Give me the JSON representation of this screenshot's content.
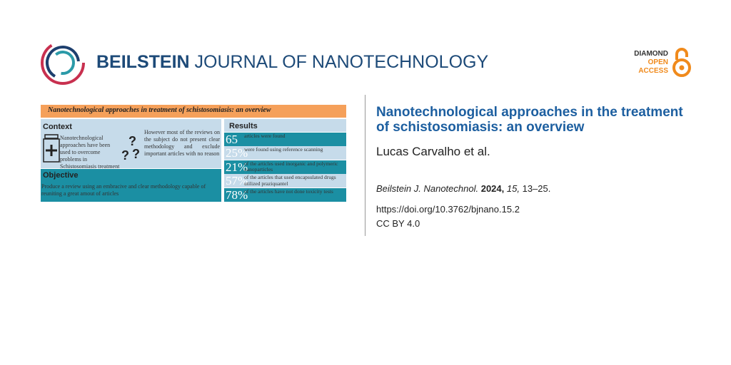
{
  "header": {
    "brand": "BEILSTEIN",
    "journal": "JOURNAL OF NANOTECHNOLOGY",
    "badge": [
      "DIAMOND",
      "OPEN",
      "ACCESS"
    ]
  },
  "graphical_abstract": {
    "title": "Nanotechnological approaches in treatment of schistosomiasis: an overview",
    "context": {
      "heading": "Context",
      "left": "Nanotechnological approaches have been used to overcome problems in Schistosomiasis treatment",
      "right": "However most of the reviews on the subject do not present clear methodology and exclude important articles with no reason"
    },
    "objective": {
      "heading": "Objective",
      "text": "Produce a review using an embracive and clear methodology capable of reuniting a great amout of articles"
    },
    "results": {
      "heading": "Results",
      "rows": [
        {
          "figure": "65",
          "text": "articles were found"
        },
        {
          "figure": "25%",
          "text": "were found using reference scanning"
        },
        {
          "figure": "21%",
          "text": "of the articles used inorganic and polymeric nanoparticles"
        },
        {
          "figure": "57%",
          "text": "of the articles that used encapsulated drugs utilized praziquantel"
        },
        {
          "figure": "78%",
          "text": "of the articles have not done toxicity tests"
        }
      ]
    }
  },
  "article": {
    "title": "Nanotechnological approaches in the treatment of schistosomiasis: an overview",
    "authors": "Lucas Carvalho et al.",
    "citation": {
      "journal": "Beilstein J. Nanotechnol.",
      "year": "2024,",
      "volume": "15,",
      "pages": "13–25."
    },
    "doi": "https://doi.org/10.3762/bjnano.15.2",
    "license": "CC BY 4.0"
  }
}
